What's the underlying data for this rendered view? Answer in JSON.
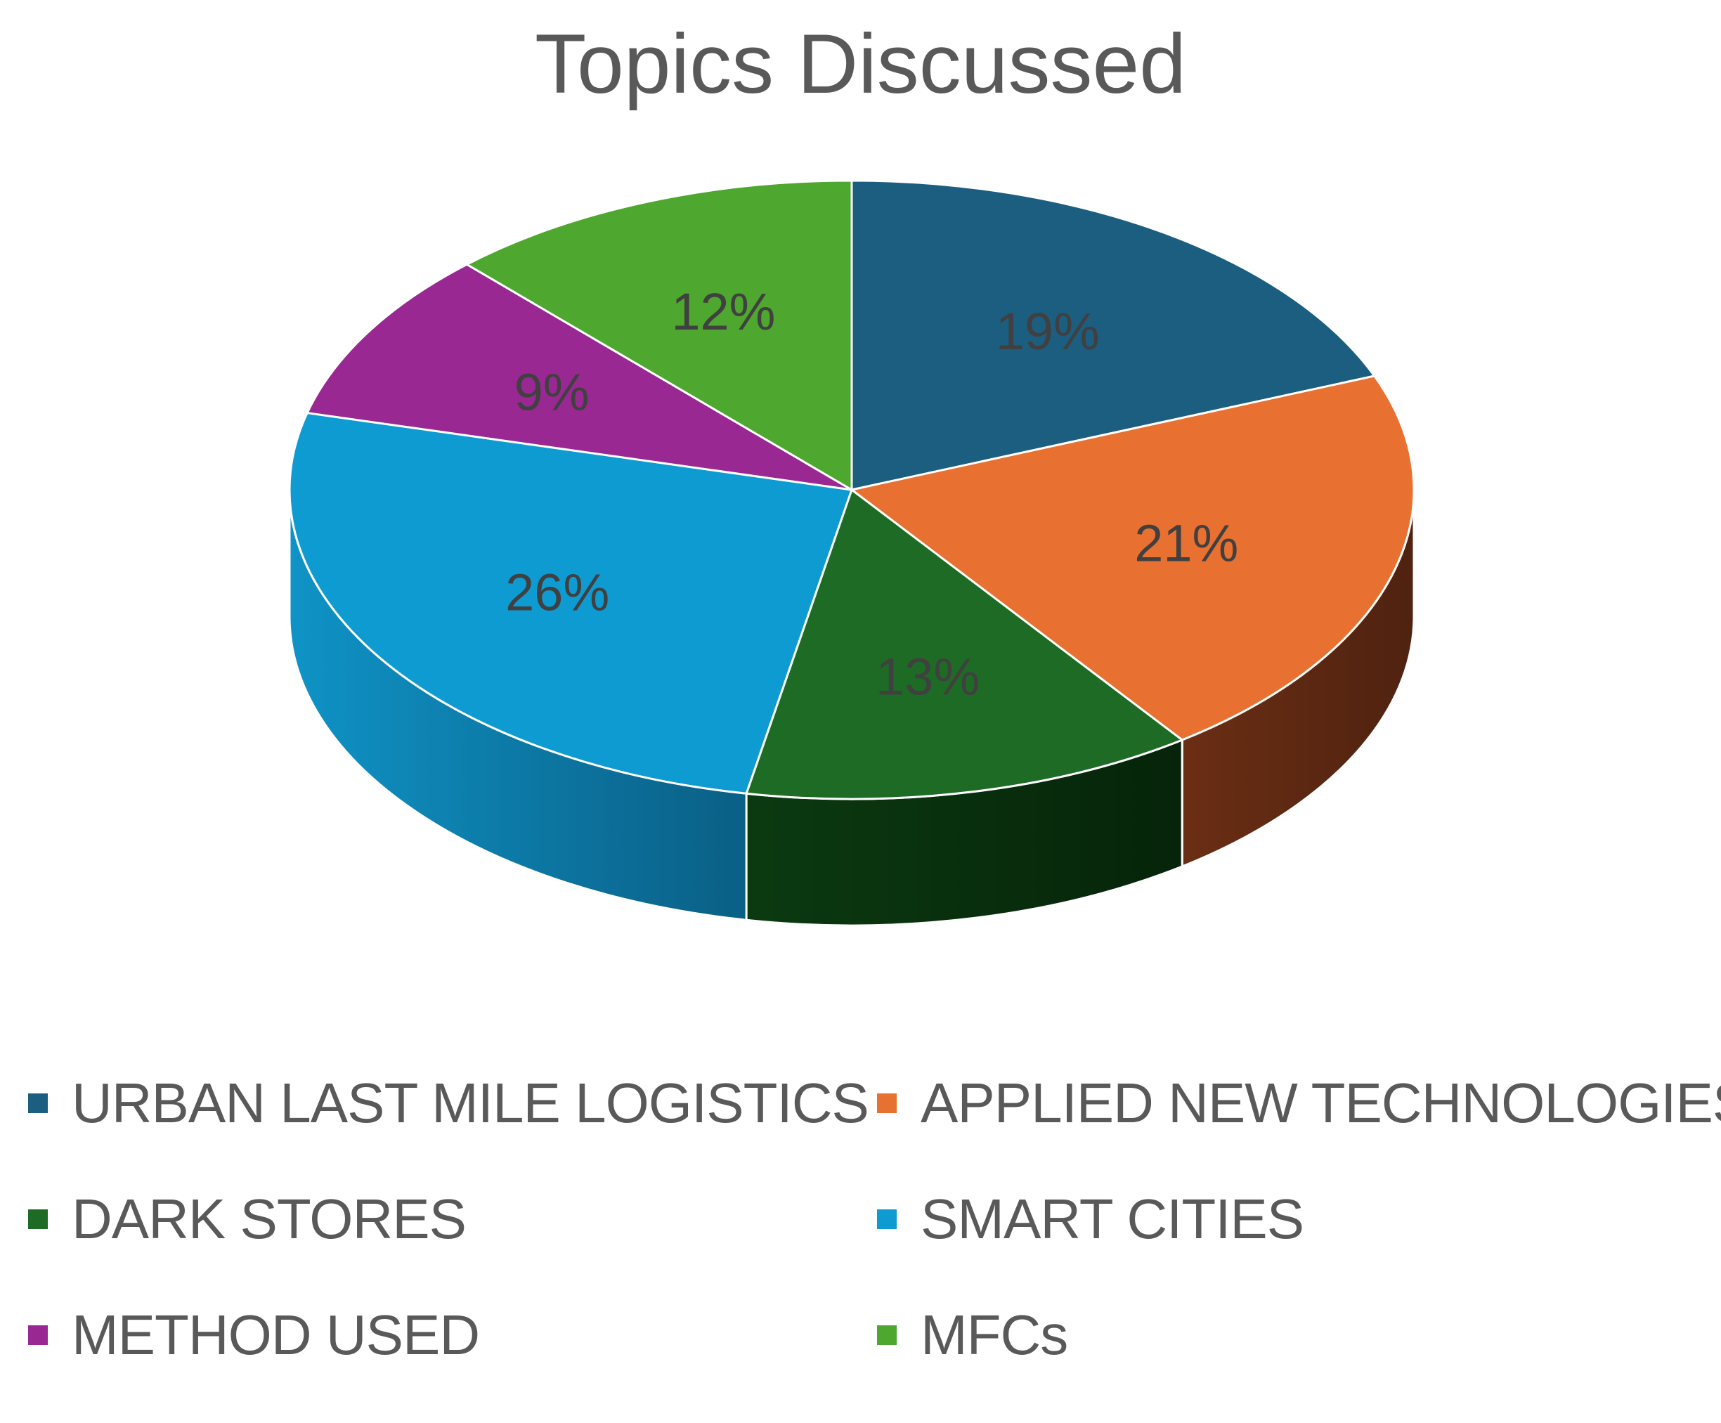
{
  "chart_data": {
    "type": "pie",
    "title": "Topics Discussed",
    "categories": [
      "URBAN LAST MILE LOGISTICS",
      "APPLIED NEW TECHNOLOGIES",
      "DARK STORES",
      "SMART CITIES",
      "METHOD USED",
      "MFCs"
    ],
    "values": [
      19,
      21,
      13,
      26,
      9,
      12
    ],
    "labels": [
      "19%",
      "21%",
      "13%",
      "26%",
      "9%",
      "12%"
    ],
    "colors": [
      "#1B5E80",
      "#E87030",
      "#1D6B24",
      "#0E9BD2",
      "#9A2892",
      "#4EA72E"
    ],
    "legend_position": "bottom",
    "style": "3d-pie"
  }
}
